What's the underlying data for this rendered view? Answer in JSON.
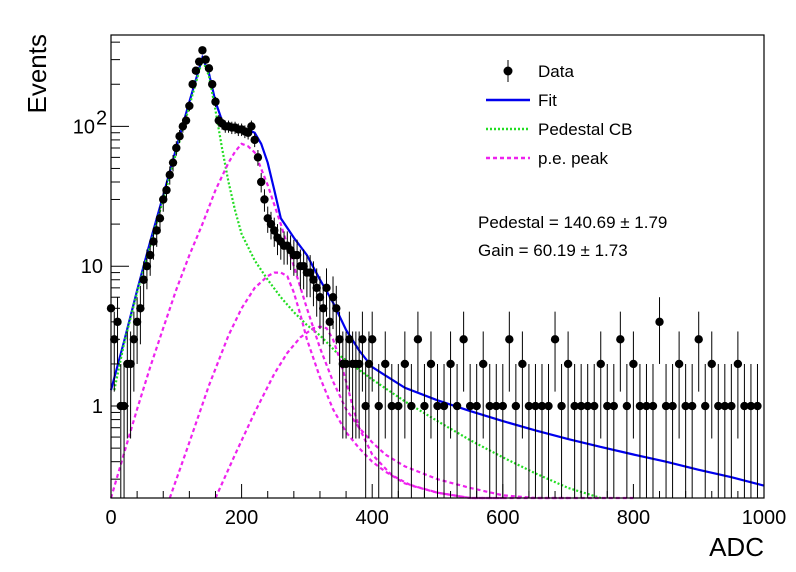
{
  "chart_data": {
    "type": "scatter",
    "title": "",
    "xlabel": "ADC",
    "ylabel": "Events",
    "xlim": [
      0,
      1000
    ],
    "ylim": [
      0.22,
      450
    ],
    "log_y": true,
    "grid": false,
    "legend_position": "top-right",
    "x_ticks": [
      {
        "value": 0,
        "label": "0"
      },
      {
        "value": 200,
        "label": "200"
      },
      {
        "value": 400,
        "label": "400"
      },
      {
        "value": 600,
        "label": "600"
      },
      {
        "value": 800,
        "label": "800"
      },
      {
        "value": 1000,
        "label": "1000"
      }
    ],
    "y_ticks": [
      {
        "value": 1,
        "label": "1"
      },
      {
        "value": 10,
        "label": "10"
      },
      {
        "value": 100,
        "label": "10",
        "sup": "2"
      }
    ],
    "legend": [
      {
        "key": "data",
        "label": "Data"
      },
      {
        "key": "fit",
        "label": "Fit"
      },
      {
        "key": "ped",
        "label": "Pedestal CB"
      },
      {
        "key": "pe",
        "label": "p.e. peak"
      }
    ],
    "annotations": [
      {
        "text": "Pedestal = 140.69 ± 1.79"
      },
      {
        "text": "Gain = 60.19 ± 1.73"
      }
    ],
    "colors": {
      "data": "#000000",
      "fit": "#0000ee",
      "pedestal": "#22dd22",
      "pe_peak": "#ee22ee"
    },
    "series": [
      {
        "name": "Data",
        "x": [
          0,
          5,
          10,
          15,
          20,
          25,
          30,
          35,
          40,
          45,
          50,
          55,
          60,
          65,
          70,
          75,
          80,
          85,
          90,
          95,
          100,
          105,
          110,
          115,
          120,
          125,
          130,
          135,
          140,
          145,
          150,
          155,
          160,
          165,
          170,
          175,
          180,
          185,
          190,
          195,
          200,
          205,
          210,
          215,
          220,
          225,
          230,
          235,
          240,
          245,
          250,
          255,
          260,
          265,
          270,
          275,
          280,
          285,
          290,
          295,
          300,
          305,
          310,
          315,
          320,
          325,
          330,
          335,
          340,
          345,
          350,
          355,
          360,
          365,
          370,
          375,
          380,
          385,
          390,
          395,
          400,
          410,
          420,
          430,
          440,
          450,
          460,
          470,
          480,
          490,
          500,
          510,
          520,
          530,
          540,
          550,
          560,
          570,
          580,
          590,
          600,
          610,
          620,
          630,
          640,
          650,
          660,
          670,
          680,
          690,
          700,
          710,
          720,
          730,
          740,
          750,
          760,
          770,
          780,
          790,
          800,
          810,
          820,
          830,
          840,
          850,
          860,
          870,
          880,
          890,
          900,
          910,
          920,
          930,
          940,
          950,
          960,
          970,
          980,
          990
        ],
        "y": [
          5,
          3,
          4,
          1,
          1,
          2,
          2,
          3,
          4,
          5,
          8,
          10,
          12,
          15,
          18,
          22,
          30,
          35,
          45,
          55,
          70,
          85,
          100,
          110,
          140,
          200,
          250,
          290,
          350,
          300,
          260,
          200,
          150,
          110,
          105,
          100,
          100,
          98,
          98,
          95,
          95,
          92,
          90,
          100,
          80,
          60,
          40,
          30,
          22,
          20,
          18,
          16,
          15,
          14,
          14,
          13,
          12,
          12,
          10,
          10,
          9,
          9,
          8,
          7,
          6,
          5,
          7,
          4,
          6,
          5,
          3,
          2,
          2,
          3,
          2,
          2,
          2,
          3,
          1,
          2,
          3,
          1,
          2,
          1,
          1,
          2,
          1,
          3,
          1,
          2,
          1,
          1,
          2,
          1,
          3,
          1,
          1,
          2,
          1,
          1,
          1,
          3,
          1,
          2,
          1,
          1,
          1,
          1,
          3,
          1,
          2,
          1,
          1,
          1,
          1,
          2,
          1,
          1,
          3,
          1,
          2,
          1,
          1,
          1,
          4,
          1,
          1,
          2,
          1,
          1,
          3,
          1,
          2,
          1,
          1,
          1,
          2,
          1,
          1,
          1
        ]
      },
      {
        "name": "Fit",
        "x": [
          0,
          20,
          40,
          60,
          80,
          100,
          120,
          140,
          150,
          160,
          170,
          180,
          190,
          200,
          210,
          220,
          230,
          240,
          250,
          260,
          280,
          300,
          320,
          340,
          360,
          380,
          400,
          450,
          500,
          550,
          600,
          650,
          700,
          750,
          800,
          850,
          900,
          950,
          1000
        ],
        "y": [
          1.3,
          2.9,
          6.7,
          15,
          32,
          70,
          150,
          310,
          240,
          150,
          110,
          102,
          100,
          97,
          94,
          90,
          75,
          55,
          35,
          22,
          16,
          12,
          8,
          5.5,
          3.5,
          2.5,
          1.9,
          1.35,
          1.1,
          0.92,
          0.78,
          0.67,
          0.58,
          0.51,
          0.45,
          0.4,
          0.35,
          0.31,
          0.27
        ]
      },
      {
        "name": "Pedestal CB",
        "x": [
          5,
          20,
          40,
          60,
          80,
          100,
          120,
          140,
          150,
          160,
          170,
          180,
          190,
          200,
          220,
          240,
          260,
          280,
          300,
          320,
          350,
          400,
          450,
          500,
          550,
          600,
          650,
          700,
          750
        ],
        "y": [
          1.3,
          2.8,
          6.5,
          14,
          30,
          65,
          140,
          300,
          230,
          130,
          70,
          40,
          25,
          17,
          11,
          8,
          6,
          4.7,
          3.8,
          3.2,
          2.3,
          1.55,
          1.08,
          0.78,
          0.57,
          0.43,
          0.33,
          0.26,
          0.22
        ]
      },
      {
        "name": "p.e. peak",
        "x": [
          0,
          20,
          40,
          60,
          80,
          100,
          120,
          140,
          160,
          180,
          190,
          200,
          210,
          220,
          240,
          260,
          280,
          300,
          320,
          340,
          360,
          380,
          400,
          420,
          450,
          500,
          550,
          600,
          650,
          700,
          750,
          800
        ],
        "y": [
          0.22,
          0.46,
          0.95,
          1.9,
          3.6,
          6.8,
          12,
          20,
          35,
          55,
          66,
          75,
          72,
          65,
          38,
          20,
          10,
          5,
          2.6,
          1.5,
          0.95,
          0.7,
          0.55,
          0.45,
          0.37,
          0.3,
          0.26,
          0.23,
          0.21,
          0.2,
          0.2,
          0.2
        ]
      },
      {
        "name": "p.e. peak",
        "x": [
          90,
          120,
          150,
          180,
          200,
          220,
          240,
          250,
          260,
          270,
          280,
          290,
          300,
          320,
          340,
          360,
          380,
          400,
          420,
          450,
          500,
          550,
          600
        ],
        "y": [
          0.22,
          0.55,
          1.4,
          3.2,
          5,
          7,
          8.5,
          9,
          9,
          8.5,
          6.5,
          4.5,
          3,
          1.6,
          0.95,
          0.65,
          0.5,
          0.4,
          0.34,
          0.28,
          0.24,
          0.22,
          0.21
        ]
      },
      {
        "name": "p.e. peak",
        "x": [
          160,
          190,
          220,
          250,
          270,
          290,
          310,
          320,
          330,
          340,
          350,
          360,
          370,
          380,
          400,
          430,
          460,
          500,
          550,
          600,
          650,
          700
        ],
        "y": [
          0.22,
          0.45,
          0.9,
          1.7,
          2.4,
          3.1,
          3.6,
          3.7,
          3.6,
          3.0,
          2.2,
          1.5,
          1.0,
          0.7,
          0.45,
          0.32,
          0.27,
          0.24,
          0.22,
          0.21,
          0.2,
          0.2
        ]
      }
    ]
  }
}
